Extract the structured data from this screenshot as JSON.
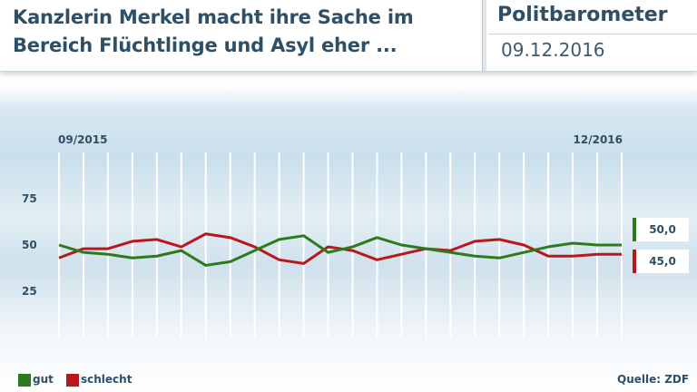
{
  "header": {
    "headline_line1": "Kanzlerin Merkel macht ihre Sache im",
    "headline_line2": "Bereich Flüchtlinge und Asyl eher ...",
    "brand": "Politbarometer",
    "date": "09.12.2016"
  },
  "legend": {
    "gut": "gut",
    "schlecht": "schlecht"
  },
  "source": "Quelle: ZDF",
  "end_values": {
    "gut": "50,0",
    "schlecht": "45,0"
  },
  "colors": {
    "gut": "#2d7a1d",
    "schlecht": "#b8181c",
    "text": "#2e4f66"
  },
  "chart_data": {
    "type": "line",
    "x_start_label": "09/2015",
    "x_end_label": "12/2016",
    "yticks": [
      25,
      50,
      75
    ],
    "ylim": [
      0,
      100
    ],
    "grid": true,
    "series": [
      {
        "name": "gut",
        "values": [
          50,
          46,
          45,
          43,
          44,
          47,
          39,
          41,
          47,
          53,
          55,
          46,
          49,
          54,
          50,
          48,
          46,
          44,
          43,
          46,
          49,
          51,
          50,
          50
        ]
      },
      {
        "name": "schlecht",
        "values": [
          43,
          48,
          48,
          52,
          53,
          49,
          56,
          54,
          49,
          42,
          40,
          49,
          47,
          42,
          45,
          48,
          47,
          52,
          53,
          50,
          44,
          44,
          45,
          45
        ]
      }
    ]
  }
}
